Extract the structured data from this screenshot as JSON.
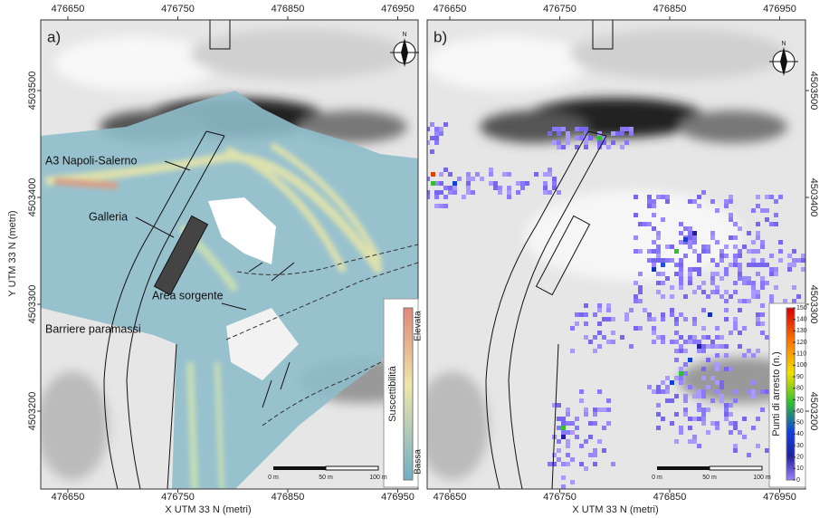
{
  "panels": [
    {
      "label": "a)",
      "x_ticks": [
        476650,
        476750,
        476850,
        476950
      ],
      "y_ticks": [
        4503500,
        4503400,
        4503300,
        4503200
      ],
      "x_axis_label": "X UTM 33 N (metri)",
      "y_axis_label": "Y UTM 33 N (metri)",
      "annotations": [
        "A3 Napoli-Salerno",
        "Galleria",
        "Area sorgente",
        "Barriere paramassi"
      ],
      "legend": {
        "title": "Suscettibilità",
        "high": "Elevata",
        "low": "Bassa"
      },
      "scale_bar": [
        "0 m",
        "50 m",
        "100 m"
      ],
      "north": "N"
    },
    {
      "label": "b)",
      "x_ticks": [
        476650,
        476750,
        476850,
        476950
      ],
      "y_ticks": [
        4503500,
        4503400,
        4503300,
        4503200
      ],
      "x_axis_label": "X UTM 33 N (metri)",
      "legend": {
        "title": "Punti di arresto (n.)",
        "ticks": [
          150,
          140,
          130,
          120,
          110,
          100,
          90,
          80,
          70,
          60,
          50,
          40,
          30,
          20,
          10,
          0
        ]
      },
      "scale_bar": [
        "0 m",
        "50 m",
        "100 m"
      ],
      "north": "N"
    }
  ]
}
